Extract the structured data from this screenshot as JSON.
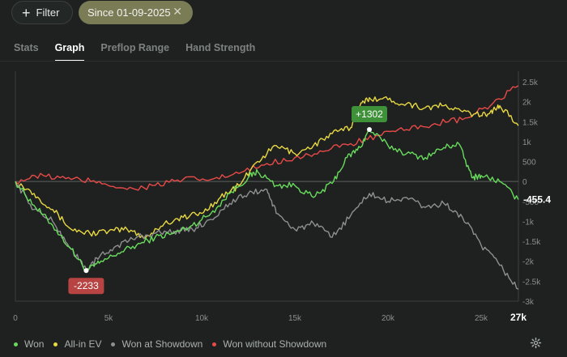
{
  "topbar": {
    "filter_label": "Filter",
    "date_filter_label": "Since 01-09-2025"
  },
  "tabs": [
    {
      "label": "Stats",
      "active": false
    },
    {
      "label": "Graph",
      "active": true
    },
    {
      "label": "Preflop Range",
      "active": false
    },
    {
      "label": "Hand Strength",
      "active": false
    }
  ],
  "chart_data": {
    "type": "line",
    "title": "",
    "xlabel": "",
    "ylabel": "",
    "xlim": [
      0,
      27000
    ],
    "ylim": [
      -3000,
      2500
    ],
    "x_ticks": [
      "0",
      "5k",
      "10k",
      "15k",
      "20k",
      "25k"
    ],
    "x_end_label": "27k",
    "y_ticks": [
      "2.5k",
      "2k",
      "1.5k",
      "1k",
      "500",
      "0",
      "-500",
      "-1k",
      "-1.5k",
      "-2k",
      "-2.5k",
      "-3k"
    ],
    "grid": false,
    "legend_position": "bottom-left",
    "series": [
      {
        "name": "Won",
        "color": "#69db5c",
        "x": [
          0,
          1000,
          2000,
          3000,
          3800,
          4500,
          5500,
          6500,
          7500,
          8500,
          9500,
          10500,
          11500,
          12500,
          13000,
          14000,
          15000,
          16000,
          17000,
          17800,
          18500,
          19000,
          20000,
          21000,
          22000,
          23000,
          23800,
          24500,
          25000,
          26000,
          27000
        ],
        "y": [
          0,
          -600,
          -1100,
          -1700,
          -2233,
          -2050,
          -1800,
          -1600,
          -1400,
          -1300,
          -1100,
          -800,
          -300,
          100,
          250,
          -100,
          -100,
          -400,
          -50,
          600,
          850,
          1302,
          900,
          700,
          600,
          850,
          950,
          100,
          150,
          0,
          -455
        ]
      },
      {
        "name": "All-in EV",
        "color": "#e8d942",
        "x": [
          0,
          1000,
          2000,
          3000,
          4000,
          5000,
          6000,
          7000,
          8000,
          9000,
          10000,
          11000,
          12000,
          13000,
          14000,
          15000,
          16000,
          17000,
          18000,
          18500,
          19000,
          20000,
          21000,
          22000,
          23000,
          24000,
          25000,
          25500,
          26000,
          27000
        ],
        "y": [
          0,
          -300,
          -700,
          -1200,
          -1300,
          -1250,
          -1200,
          -1400,
          -1050,
          -900,
          -800,
          -400,
          -100,
          500,
          900,
          700,
          900,
          1200,
          1350,
          1900,
          2100,
          2050,
          1950,
          1850,
          1900,
          1750,
          1650,
          1750,
          1900,
          1400
        ]
      },
      {
        "name": "Won at Showdown",
        "color": "#8f8f8f",
        "x": [
          0,
          1000,
          2000,
          3000,
          3800,
          4500,
          5500,
          6500,
          7500,
          8500,
          9500,
          10500,
          11500,
          12500,
          13500,
          14000,
          15000,
          16000,
          17000,
          18000,
          19000,
          20000,
          21000,
          22000,
          23000,
          24000,
          25000,
          26000,
          27000
        ],
        "y": [
          0,
          -700,
          -1000,
          -1700,
          -2200,
          -1900,
          -1600,
          -1400,
          -1300,
          -1250,
          -1200,
          -950,
          -550,
          -300,
          -200,
          -800,
          -1200,
          -1050,
          -1400,
          -850,
          -300,
          -500,
          -400,
          -650,
          -550,
          -900,
          -1600,
          -2100,
          -2700
        ]
      },
      {
        "name": "Won without Showdown",
        "color": "#e84a48",
        "x": [
          0,
          1500,
          3000,
          4500,
          6000,
          7500,
          9000,
          10500,
          12000,
          13500,
          15000,
          16500,
          18000,
          19500,
          21000,
          22500,
          24000,
          25500,
          27000
        ],
        "y": [
          0,
          150,
          50,
          0,
          -200,
          -100,
          50,
          50,
          200,
          450,
          600,
          750,
          950,
          1150,
          1300,
          1450,
          1550,
          1900,
          2400
        ]
      }
    ],
    "annotations": [
      {
        "label": "+1302",
        "x": 19000,
        "y": 1302,
        "color": "#3f9139"
      },
      {
        "label": "-2233",
        "x": 3800,
        "y": -2233,
        "color": "#b84343"
      }
    ],
    "end_value_label": "-455.4"
  },
  "footer": {
    "icon": "gear-icon"
  }
}
